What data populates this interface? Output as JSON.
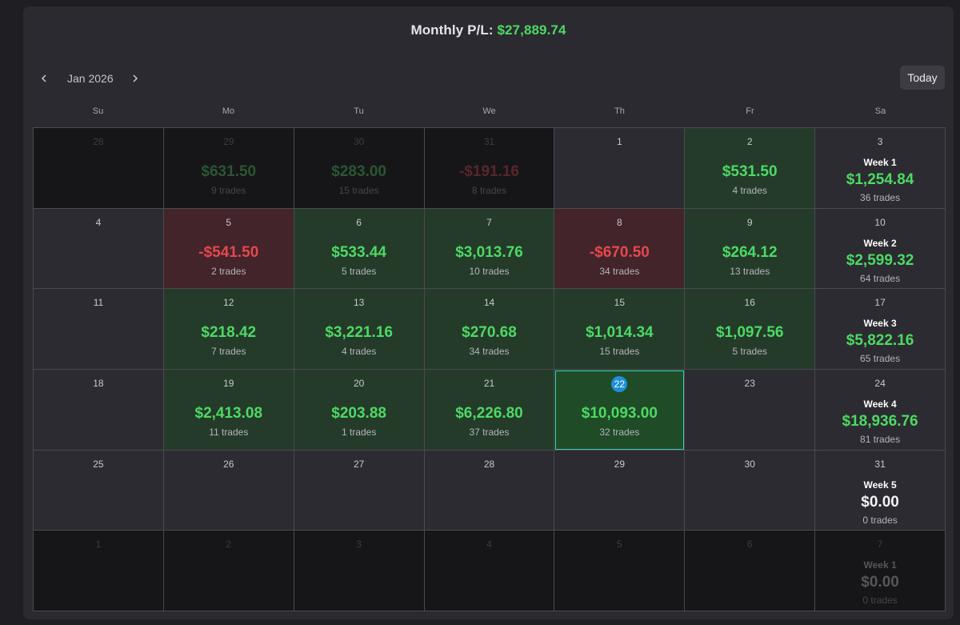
{
  "header": {
    "monthly_label": "Monthly P/L:",
    "monthly_value": "$27,889.74"
  },
  "nav": {
    "month": "Jan 2026",
    "today": "Today"
  },
  "weekdays": [
    "Su",
    "Mo",
    "Tu",
    "We",
    "Th",
    "Fr",
    "Sa"
  ],
  "colors": {
    "positive": "#4cd964",
    "negative": "#e5484d",
    "today_badge": "#1e8fd6",
    "selected_border": "#3dc7c0"
  },
  "cells": [
    {
      "day": "28",
      "outside": true
    },
    {
      "day": "29",
      "outside": true,
      "amount": "$631.50",
      "trades": "9 trades",
      "tone": "pos"
    },
    {
      "day": "30",
      "outside": true,
      "amount": "$283.00",
      "trades": "15 trades",
      "tone": "pos"
    },
    {
      "day": "31",
      "outside": true,
      "amount": "-$191.16",
      "trades": "8 trades",
      "tone": "neg"
    },
    {
      "day": "1"
    },
    {
      "day": "2",
      "amount": "$531.50",
      "trades": "4 trades",
      "tone": "pos"
    },
    {
      "day": "3",
      "week": "Week 1",
      "amount": "$1,254.84",
      "trades": "36 trades",
      "tone": "pos"
    },
    {
      "day": "4"
    },
    {
      "day": "5",
      "amount": "-$541.50",
      "trades": "2 trades",
      "tone": "neg"
    },
    {
      "day": "6",
      "amount": "$533.44",
      "trades": "5 trades",
      "tone": "pos"
    },
    {
      "day": "7",
      "amount": "$3,013.76",
      "trades": "10 trades",
      "tone": "pos"
    },
    {
      "day": "8",
      "amount": "-$670.50",
      "trades": "34 trades",
      "tone": "neg"
    },
    {
      "day": "9",
      "amount": "$264.12",
      "trades": "13 trades",
      "tone": "pos"
    },
    {
      "day": "10",
      "week": "Week 2",
      "amount": "$2,599.32",
      "trades": "64 trades",
      "tone": "pos"
    },
    {
      "day": "11"
    },
    {
      "day": "12",
      "amount": "$218.42",
      "trades": "7 trades",
      "tone": "pos"
    },
    {
      "day": "13",
      "amount": "$3,221.16",
      "trades": "4 trades",
      "tone": "pos"
    },
    {
      "day": "14",
      "amount": "$270.68",
      "trades": "34 trades",
      "tone": "pos"
    },
    {
      "day": "15",
      "amount": "$1,014.34",
      "trades": "15 trades",
      "tone": "pos"
    },
    {
      "day": "16",
      "amount": "$1,097.56",
      "trades": "5 trades",
      "tone": "pos"
    },
    {
      "day": "17",
      "week": "Week 3",
      "amount": "$5,822.16",
      "trades": "65 trades",
      "tone": "pos"
    },
    {
      "day": "18"
    },
    {
      "day": "19",
      "amount": "$2,413.08",
      "trades": "11 trades",
      "tone": "pos"
    },
    {
      "day": "20",
      "amount": "$203.88",
      "trades": "1 trades",
      "tone": "pos"
    },
    {
      "day": "21",
      "amount": "$6,226.80",
      "trades": "37 trades",
      "tone": "pos"
    },
    {
      "day": "22",
      "amount": "$10,093.00",
      "trades": "32 trades",
      "tone": "pos",
      "today": true
    },
    {
      "day": "23"
    },
    {
      "day": "24",
      "week": "Week 4",
      "amount": "$18,936.76",
      "trades": "81 trades",
      "tone": "pos"
    },
    {
      "day": "25"
    },
    {
      "day": "26"
    },
    {
      "day": "27"
    },
    {
      "day": "28"
    },
    {
      "day": "29"
    },
    {
      "day": "30"
    },
    {
      "day": "31",
      "week": "Week 5",
      "amount": "$0.00",
      "trades": "0 trades",
      "tone": "zero"
    },
    {
      "day": "1",
      "outside": true
    },
    {
      "day": "2",
      "outside": true
    },
    {
      "day": "3",
      "outside": true
    },
    {
      "day": "4",
      "outside": true
    },
    {
      "day": "5",
      "outside": true
    },
    {
      "day": "6",
      "outside": true
    },
    {
      "day": "7",
      "outside": true,
      "week": "Week 1",
      "amount": "$0.00",
      "trades": "0 trades",
      "tone": "zero"
    }
  ]
}
